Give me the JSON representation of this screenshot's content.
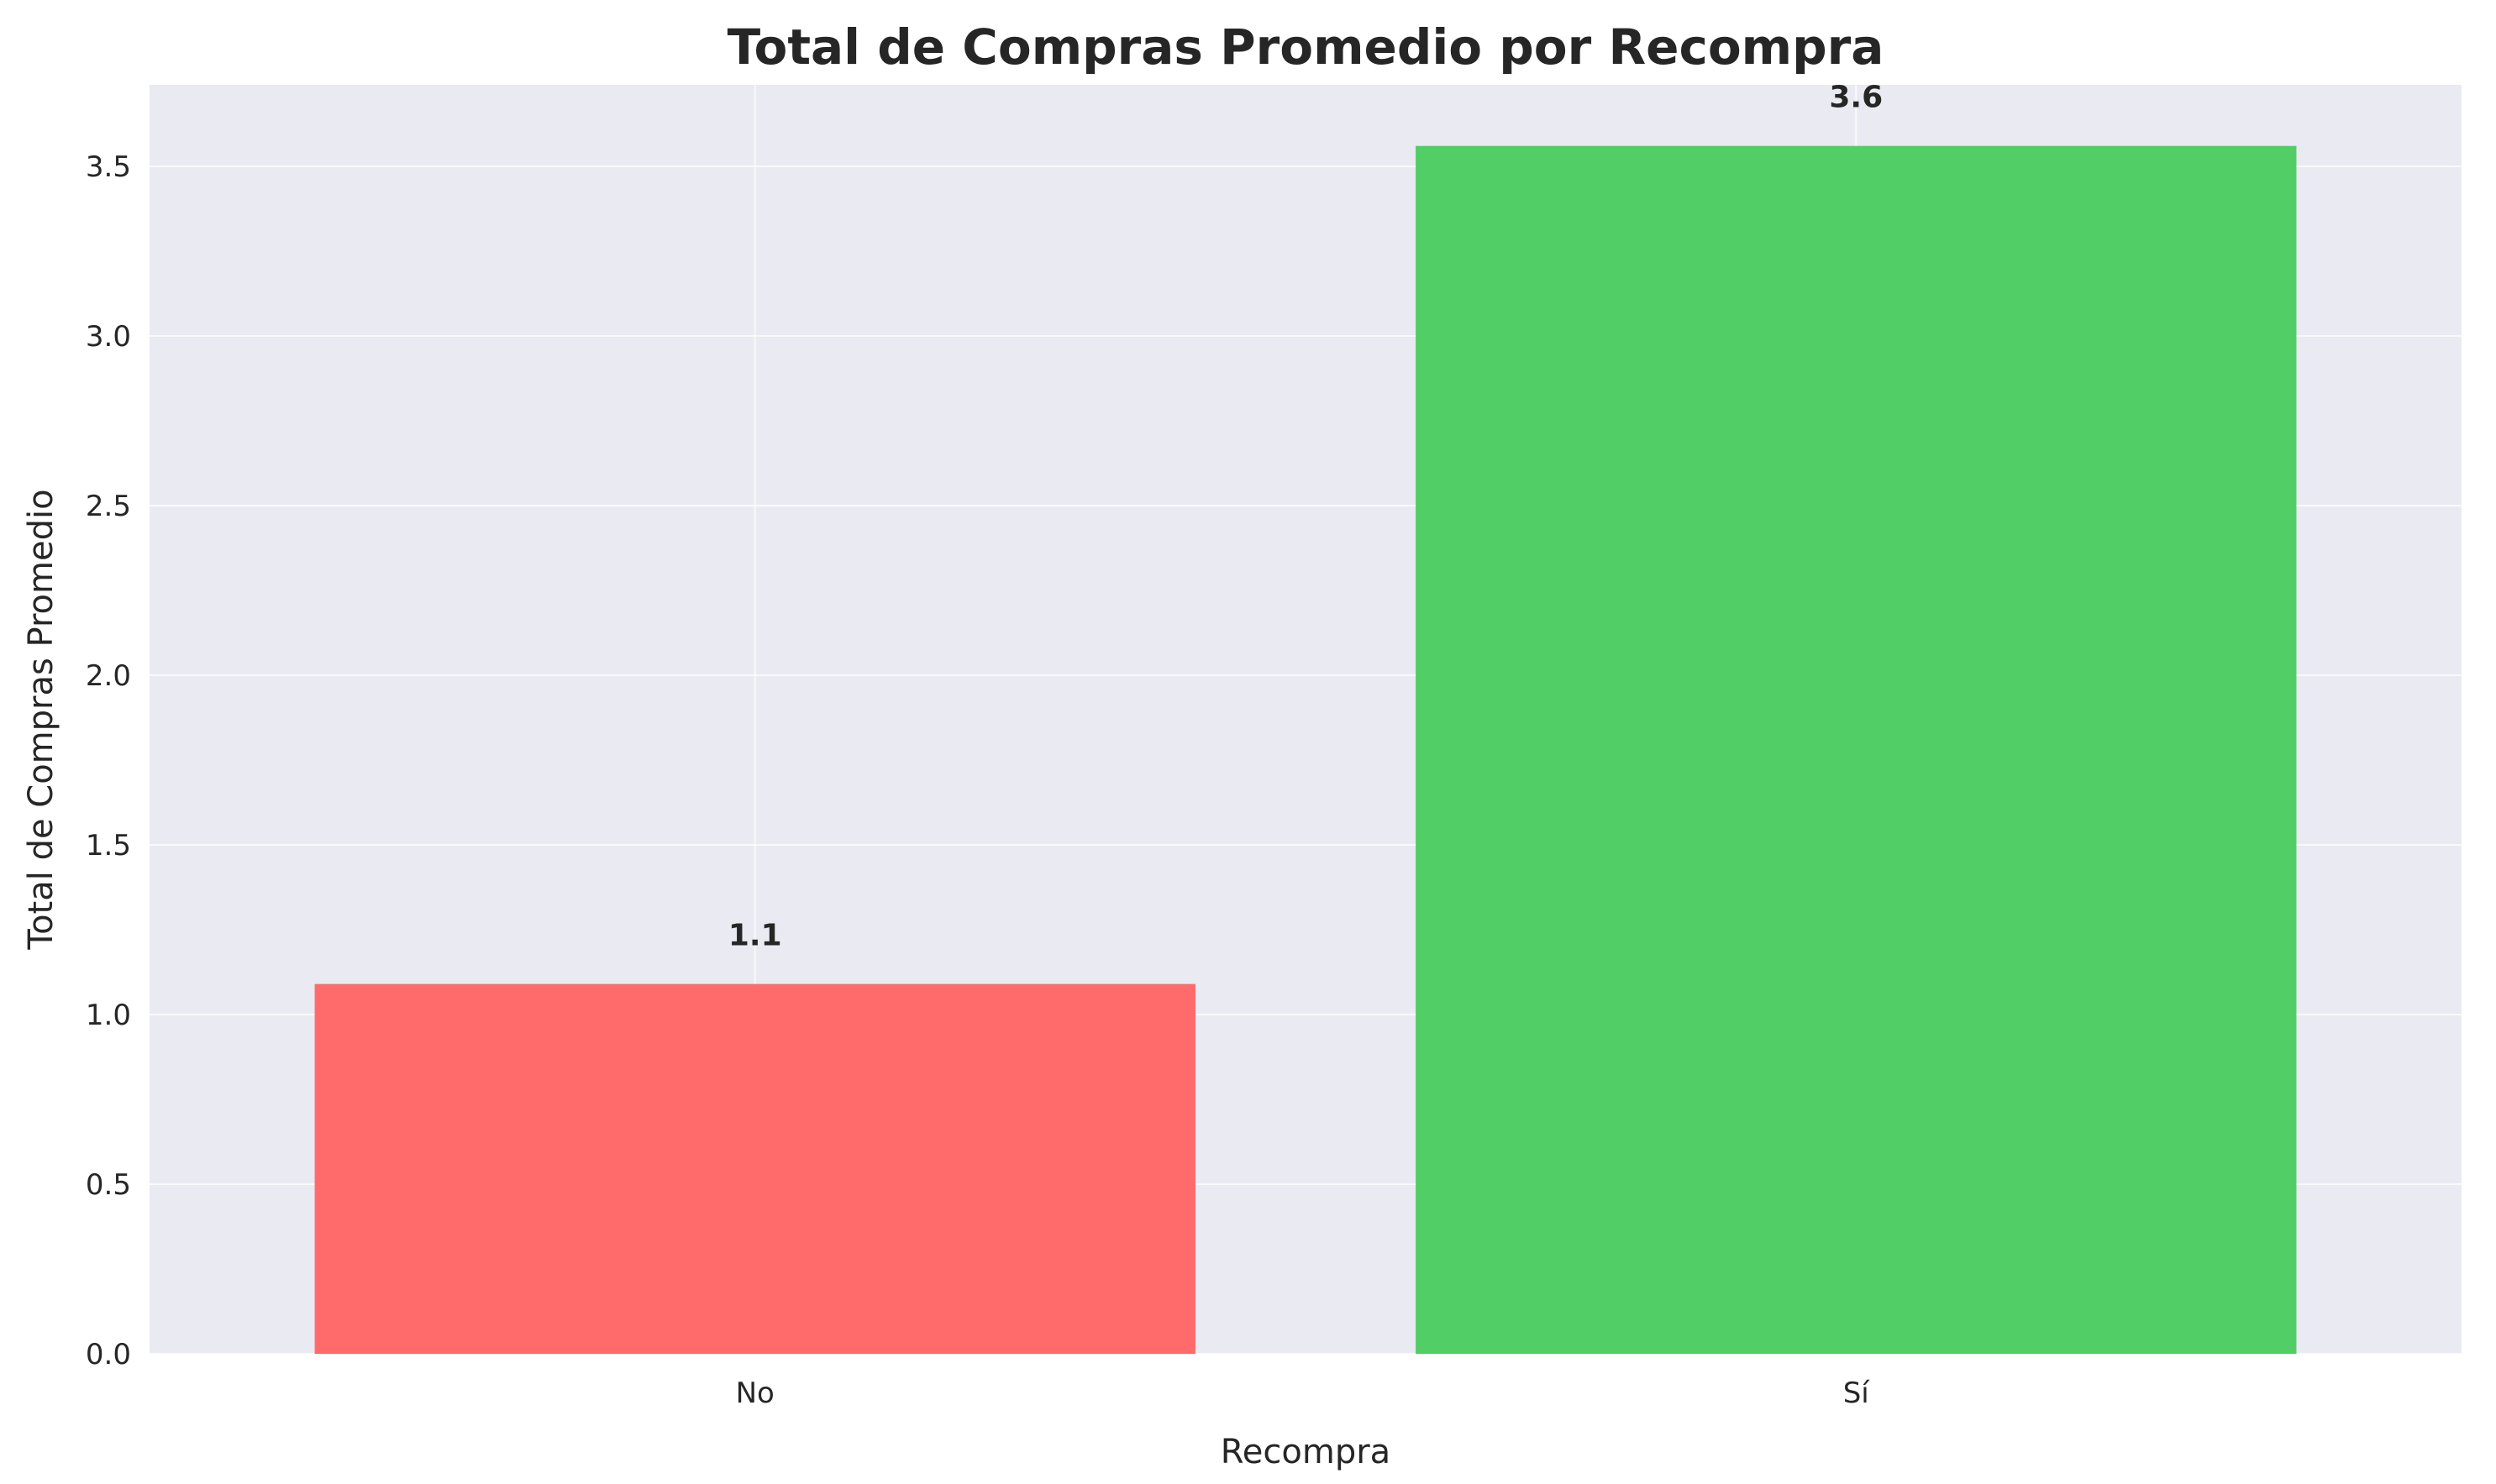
{
  "chart_data": {
    "type": "bar",
    "title": "Total de Compras Promedio por Recompra",
    "xlabel": "Recompra",
    "ylabel": "Total de Compras Promedio",
    "categories": [
      "No",
      "Sí"
    ],
    "values": [
      1.09,
      3.56
    ],
    "data_labels": [
      "1.1",
      "3.6"
    ],
    "bar_colors": [
      "#ff6b6b",
      "#51cf66"
    ],
    "ylim": [
      0,
      3.74
    ],
    "yticks": [
      0.0,
      0.5,
      1.0,
      1.5,
      2.0,
      2.5,
      3.0,
      3.5
    ],
    "ytick_labels": [
      "0.0",
      "0.5",
      "1.0",
      "1.5",
      "2.0",
      "2.5",
      "3.0",
      "3.5"
    ],
    "grid": true,
    "plot_background": "#eaeaf2",
    "grid_color": "#ffffff",
    "text_color": "#262626"
  }
}
